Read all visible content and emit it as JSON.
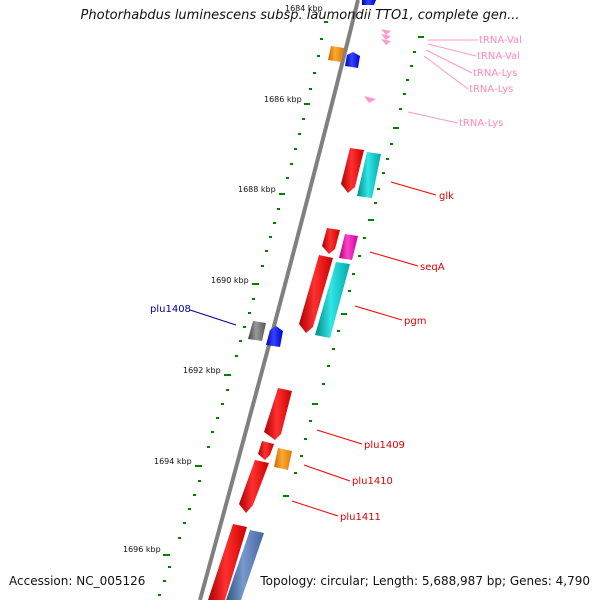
{
  "title": "Photorhabdus luminescens subsp. laumondii TTO1, complete gen...",
  "footer": {
    "accession": "Accession: NC_005126",
    "summary": "Topology: circular; Length: 5,688,987 bp; Genes: 4,790"
  },
  "colors": {
    "backbone": "#808080",
    "cds": "#ff0000",
    "trna": "#ff99cc",
    "plus_cog": "#00cccc",
    "magenta_cog": "#ff33cc",
    "orange_cog": "#ff9900",
    "blue_cog": "#0000ff",
    "gray_cog": "#707070",
    "steel_cog": "#5577aa",
    "tick": "#008000",
    "plu1408_label": "#000099"
  },
  "scale_labels": [
    "1684 kbp",
    "1686 kbp",
    "1688 kbp",
    "1690 kbp",
    "1692 kbp",
    "1694 kbp",
    "1696 kbp"
  ],
  "feature_labels": {
    "trna_1": "tRNA-Val",
    "trna_2": "tRNA-Val",
    "trna_3": "tRNA-Lys",
    "trna_4": "tRNA-Lys",
    "trna_5": "tRNA-Lys",
    "glk": "glk",
    "seqA": "seqA",
    "pgm": "pgm",
    "plu1408": "plu1408",
    "plu1409": "plu1409",
    "plu1410": "plu1410",
    "plu1411": "plu1411"
  }
}
